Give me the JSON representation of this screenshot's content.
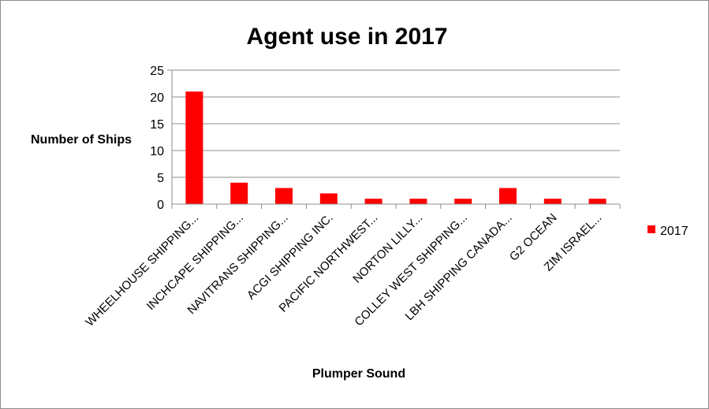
{
  "chart_data": {
    "type": "bar",
    "title": "Agent use in 2017",
    "xlabel": "Plumper Sound",
    "ylabel": "Number of Ships",
    "ylim": [
      0,
      25
    ],
    "yticks": [
      0,
      5,
      10,
      15,
      20,
      25
    ],
    "grid": true,
    "legend_position": "right",
    "categories": [
      "WHEELHOUSE SHIPPING...",
      "INCHCAPE SHIPPING...",
      "NAVITRANS SHIPPING...",
      "ACGI SHIPPING INC.",
      "PACIFIC NORTHWEST...",
      "NORTON LILLY...",
      "COLLEY WEST SHIPPING...",
      "LBH SHIPPING CANADA...",
      "G2 OCEAN",
      "ZIM ISRAEL..."
    ],
    "series": [
      {
        "name": "2017",
        "color": "#ff0000",
        "values": [
          21,
          4,
          3,
          2,
          1,
          1,
          1,
          3,
          1,
          1
        ]
      }
    ]
  }
}
